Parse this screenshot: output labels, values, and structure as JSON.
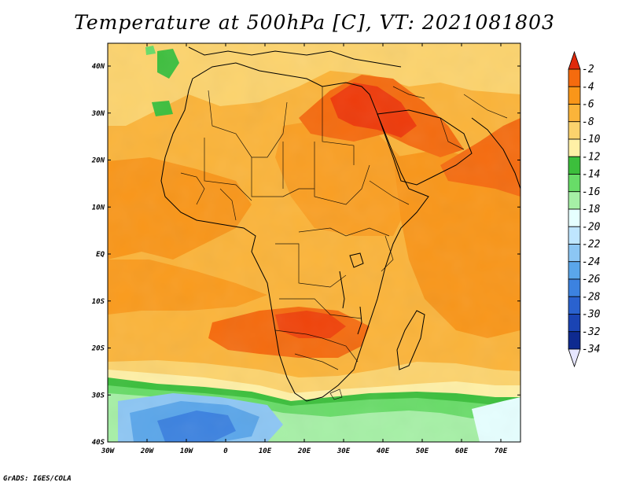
{
  "title": "Temperature at 500hPa [C], VT: 2021081803",
  "credit": "GrADS: IGES/COLA",
  "lat_labels": [
    "40N",
    "30N",
    "20N",
    "10N",
    "EQ",
    "10S",
    "20S",
    "30S",
    "40S"
  ],
  "lon_labels": [
    "30W",
    "20W",
    "10W",
    "0",
    "10E",
    "20E",
    "30E",
    "40E",
    "50E",
    "60E",
    "70E"
  ],
  "colorbar": {
    "labels": [
      "-2",
      "-4",
      "-6",
      "-8",
      "-10",
      "-12",
      "-14",
      "-16",
      "-18",
      "-20",
      "-22",
      "-24",
      "-26",
      "-28",
      "-30",
      "-32",
      "-34"
    ],
    "colors": [
      "#ee3a0a",
      "#f56b0e",
      "#f99619",
      "#fbb43a",
      "#fcd36d",
      "#fff0a6",
      "#3cbf3c",
      "#68dc68",
      "#a6f0a6",
      "#e6ffff",
      "#bfe6ff",
      "#8cc6f4",
      "#5aa6ea",
      "#3c82e0",
      "#2a62cf",
      "#1a44b4",
      "#0e2a90",
      "#0a1464"
    ],
    "top_color": "#e02a0c",
    "bottom_color": "#e6e6ff"
  }
}
